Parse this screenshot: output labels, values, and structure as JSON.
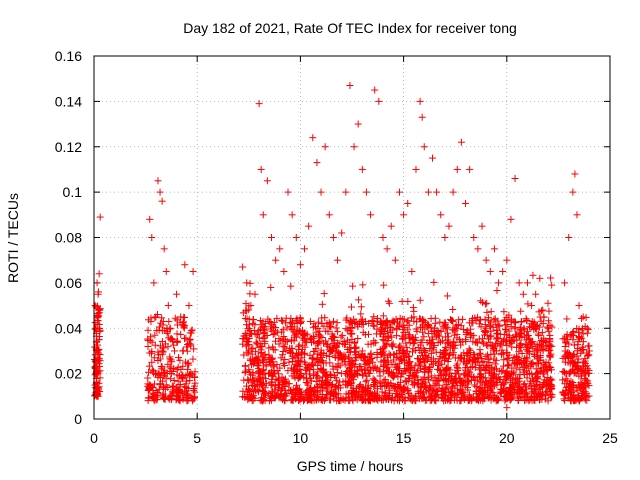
{
  "chart_data": {
    "type": "scatter",
    "title": "Day 182 of 2021, Rate Of TEC Index for receiver tong",
    "xlabel": "GPS time / hours",
    "ylabel": "ROTI / TECUs",
    "xlim": [
      0,
      25
    ],
    "ylim": [
      0,
      0.16
    ],
    "x_ticks": [
      "0",
      "5",
      "10",
      "15",
      "20",
      "25"
    ],
    "y_ticks": [
      "0",
      "0.02",
      "0.04",
      "0.06",
      "0.08",
      "0.1",
      "0.12",
      "0.14",
      "0.16"
    ],
    "grid": true,
    "marker": "+",
    "color": "#ff0000",
    "series": [
      {
        "values_note": "dense ROTI samples; representative points",
        "points": [
          [
            0.05,
            0.015
          ],
          [
            0.1,
            0.02
          ],
          [
            0.15,
            0.03
          ],
          [
            0.2,
            0.045
          ],
          [
            0.25,
            0.064
          ],
          [
            0.2,
            0.055
          ],
          [
            0.15,
            0.012
          ],
          [
            0.1,
            0.025
          ],
          [
            0.3,
            0.089
          ],
          [
            0.25,
            0.035
          ],
          [
            0.05,
            0.05
          ],
          [
            0.2,
            0.01
          ],
          [
            0.1,
            0.04
          ],
          [
            0.15,
            0.06
          ],
          [
            2.7,
            0.088
          ],
          [
            2.8,
            0.08
          ],
          [
            2.9,
            0.06
          ],
          [
            3.0,
            0.045
          ],
          [
            3.1,
            0.105
          ],
          [
            3.2,
            0.1
          ],
          [
            3.3,
            0.096
          ],
          [
            3.4,
            0.075
          ],
          [
            3.5,
            0.065
          ],
          [
            3.6,
            0.05
          ],
          [
            3.7,
            0.04
          ],
          [
            3.8,
            0.035
          ],
          [
            3.9,
            0.03
          ],
          [
            4.0,
            0.055
          ],
          [
            4.2,
            0.045
          ],
          [
            4.4,
            0.068
          ],
          [
            4.6,
            0.05
          ],
          [
            4.8,
            0.065
          ],
          [
            3.0,
            0.02
          ],
          [
            3.5,
            0.015
          ],
          [
            4.0,
            0.01
          ],
          [
            4.5,
            0.008
          ],
          [
            2.8,
            0.025
          ],
          [
            3.3,
            0.03
          ],
          [
            4.3,
            0.03
          ],
          [
            4.7,
            0.02
          ],
          [
            7.2,
            0.067
          ],
          [
            7.4,
            0.06
          ],
          [
            7.6,
            0.05
          ],
          [
            7.8,
            0.055
          ],
          [
            8.0,
            0.139
          ],
          [
            8.1,
            0.11
          ],
          [
            8.2,
            0.09
          ],
          [
            8.4,
            0.105
          ],
          [
            8.6,
            0.08
          ],
          [
            8.8,
            0.07
          ],
          [
            9.0,
            0.075
          ],
          [
            9.2,
            0.065
          ],
          [
            9.4,
            0.1
          ],
          [
            9.6,
            0.09
          ],
          [
            9.8,
            0.08
          ],
          [
            10.0,
            0.068
          ],
          [
            10.2,
            0.075
          ],
          [
            10.4,
            0.085
          ],
          [
            10.6,
            0.124
          ],
          [
            10.8,
            0.113
          ],
          [
            11.0,
            0.1
          ],
          [
            11.2,
            0.12
          ],
          [
            11.4,
            0.09
          ],
          [
            11.6,
            0.08
          ],
          [
            11.8,
            0.07
          ],
          [
            12.0,
            0.082
          ],
          [
            12.2,
            0.1
          ],
          [
            12.4,
            0.147
          ],
          [
            12.6,
            0.12
          ],
          [
            12.8,
            0.13
          ],
          [
            13.0,
            0.11
          ],
          [
            13.2,
            0.1
          ],
          [
            13.4,
            0.09
          ],
          [
            13.6,
            0.145
          ],
          [
            13.8,
            0.14
          ],
          [
            14.0,
            0.08
          ],
          [
            14.2,
            0.075
          ],
          [
            14.4,
            0.085
          ],
          [
            14.6,
            0.07
          ],
          [
            14.8,
            0.1
          ],
          [
            15.0,
            0.09
          ],
          [
            15.2,
            0.095
          ],
          [
            15.4,
            0.065
          ],
          [
            15.6,
            0.11
          ],
          [
            15.8,
            0.14
          ],
          [
            15.9,
            0.133
          ],
          [
            16.0,
            0.12
          ],
          [
            16.2,
            0.1
          ],
          [
            16.4,
            0.115
          ],
          [
            16.6,
            0.1
          ],
          [
            16.8,
            0.09
          ],
          [
            17.0,
            0.08
          ],
          [
            17.2,
            0.085
          ],
          [
            17.4,
            0.1
          ],
          [
            17.6,
            0.11
          ],
          [
            17.8,
            0.122
          ],
          [
            18.0,
            0.095
          ],
          [
            18.2,
            0.11
          ],
          [
            18.4,
            0.08
          ],
          [
            18.6,
            0.075
          ],
          [
            18.8,
            0.085
          ],
          [
            19.0,
            0.07
          ],
          [
            19.2,
            0.065
          ],
          [
            19.4,
            0.075
          ],
          [
            19.6,
            0.06
          ],
          [
            19.8,
            0.065
          ],
          [
            20.0,
            0.07
          ],
          [
            20.2,
            0.088
          ],
          [
            20.4,
            0.106
          ],
          [
            20.6,
            0.06
          ],
          [
            20.8,
            0.055
          ],
          [
            21.0,
            0.06
          ],
          [
            21.2,
            0.05
          ],
          [
            21.4,
            0.055
          ],
          [
            21.6,
            0.062
          ],
          [
            21.8,
            0.045
          ],
          [
            22.0,
            0.04
          ],
          [
            7.5,
            0.03
          ],
          [
            8.0,
            0.02
          ],
          [
            8.5,
            0.025
          ],
          [
            9.0,
            0.015
          ],
          [
            9.5,
            0.03
          ],
          [
            10.0,
            0.02
          ],
          [
            10.5,
            0.035
          ],
          [
            11.0,
            0.025
          ],
          [
            11.5,
            0.03
          ],
          [
            12.0,
            0.02
          ],
          [
            12.5,
            0.04
          ],
          [
            13.0,
            0.03
          ],
          [
            13.5,
            0.025
          ],
          [
            14.0,
            0.035
          ],
          [
            14.5,
            0.02
          ],
          [
            15.0,
            0.03
          ],
          [
            15.5,
            0.045
          ],
          [
            16.0,
            0.025
          ],
          [
            16.5,
            0.04
          ],
          [
            17.0,
            0.03
          ],
          [
            17.5,
            0.02
          ],
          [
            18.0,
            0.035
          ],
          [
            18.5,
            0.025
          ],
          [
            19.0,
            0.04
          ],
          [
            19.5,
            0.03
          ],
          [
            20.0,
            0.02
          ],
          [
            20.5,
            0.025
          ],
          [
            21.0,
            0.03
          ],
          [
            21.5,
            0.02
          ],
          [
            22.0,
            0.015
          ],
          [
            7.3,
            0.01
          ],
          [
            8.5,
            0.008
          ],
          [
            10.5,
            0.01
          ],
          [
            13.0,
            0.012
          ],
          [
            14.8,
            0.008
          ],
          [
            17.0,
            0.01
          ],
          [
            19.5,
            0.009
          ],
          [
            20.0,
            0.005
          ],
          [
            21.0,
            0.01
          ],
          [
            22.0,
            0.008
          ],
          [
            22.8,
            0.06
          ],
          [
            23.0,
            0.08
          ],
          [
            23.2,
            0.1
          ],
          [
            23.3,
            0.108
          ],
          [
            23.4,
            0.09
          ],
          [
            23.5,
            0.05
          ],
          [
            23.7,
            0.045
          ],
          [
            23.9,
            0.04
          ],
          [
            22.9,
            0.02
          ],
          [
            23.1,
            0.015
          ],
          [
            23.3,
            0.025
          ],
          [
            23.6,
            0.02
          ],
          [
            23.8,
            0.012
          ],
          [
            24.0,
            0.03
          ]
        ]
      }
    ]
  }
}
